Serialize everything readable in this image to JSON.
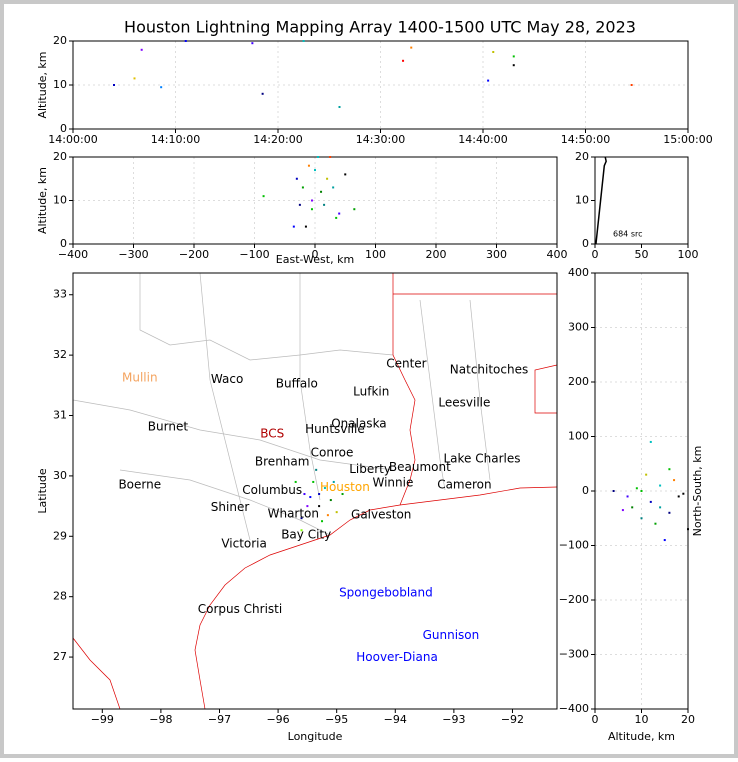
{
  "title": "Houston Lightning Mapping Array 1400-1500 UTC May 28, 2023",
  "chart_data": [
    {
      "type": "scatter",
      "ylabel": "Altitude, km",
      "xlim": [
        0,
        60
      ],
      "xticks": [
        {
          "value": 0,
          "label": "14:00:00"
        },
        {
          "value": 10,
          "label": "14:10:00"
        },
        {
          "value": 20,
          "label": "14:20:00"
        },
        {
          "value": 30,
          "label": "14:30:00"
        },
        {
          "value": 40,
          "label": "14:40:00"
        },
        {
          "value": 50,
          "label": "14:50:00"
        },
        {
          "value": 60,
          "label": "15:00:00"
        }
      ],
      "ylim": [
        0,
        20
      ],
      "yticks": [
        0,
        10,
        20
      ],
      "grid": true,
      "x": [
        6.7,
        6.0,
        4.0,
        8.6,
        17.5,
        18.5,
        32.2,
        33.0,
        26.0,
        40.5,
        43.0,
        43.0,
        41.0,
        54.5,
        11.0,
        22.5
      ],
      "values": [
        18,
        11.5,
        10,
        9.5,
        19.5,
        8,
        15.5,
        18.5,
        5,
        11,
        16.5,
        14.5,
        17.5,
        10,
        20,
        20
      ],
      "colors": [
        "#8000ff",
        "#e0c000",
        "#0000c0",
        "#0080ff",
        "#4000ff",
        "#000080",
        "#ff0000",
        "#ff8000",
        "#00a0a0",
        "#0000ff",
        "#00c000",
        "#000000",
        "#c0c000",
        "#ff4000",
        "#0000ff",
        "#00c0c0"
      ]
    },
    {
      "type": "scatter",
      "xlabel": "East-West, km",
      "ylabel": "Altitude, km",
      "xlim": [
        -400,
        400
      ],
      "xticks": [
        {
          "value": -400,
          "label": "−400"
        },
        {
          "value": -300,
          "label": "−300"
        },
        {
          "value": -200,
          "label": "−200"
        },
        {
          "value": -100,
          "label": "−100"
        },
        0,
        100,
        200,
        300,
        400
      ],
      "ylim": [
        0,
        20
      ],
      "yticks": [
        0,
        10,
        20
      ],
      "grid": true,
      "x": [
        -30,
        -20,
        -10,
        0,
        10,
        20,
        -25,
        -5,
        15,
        30,
        40,
        -15,
        -35,
        5,
        25,
        -85,
        65,
        50,
        -5,
        35
      ],
      "values": [
        15,
        13,
        18,
        17,
        12,
        15,
        9,
        8,
        9,
        13,
        7,
        4,
        4,
        20,
        20,
        11,
        8,
        16,
        10,
        6
      ],
      "colors": [
        "#0000c0",
        "#00a000",
        "#ff8000",
        "#00c0c0",
        "#008000",
        "#c0c000",
        "#000080",
        "#00c000",
        "#008080",
        "#00a0a0",
        "#4000ff",
        "#000000",
        "#0000ff",
        "#00c0c0",
        "#ff4000",
        "#00c000",
        "#00a000",
        "#000000",
        "#8000ff",
        "#00c000"
      ]
    },
    {
      "type": "line",
      "annotation": "684 src",
      "xlim": [
        0,
        100
      ],
      "xticks": [
        0,
        50,
        100
      ],
      "ylim": [
        0,
        20
      ],
      "yticks": [
        0,
        10,
        20
      ],
      "color": "#000000",
      "x": [
        1,
        2,
        3,
        4,
        5,
        6,
        7,
        8,
        9,
        10,
        12,
        11
      ],
      "values": [
        0,
        2,
        4,
        6,
        8,
        10,
        12,
        14,
        16,
        18,
        19,
        20
      ]
    },
    {
      "type": "map",
      "xlabel": "Longitude",
      "ylabel": "Latitude",
      "xlim": [
        -99.5,
        -91.24
      ],
      "xticks": [
        {
          "value": -99,
          "label": "−99"
        },
        {
          "value": -98,
          "label": "−98"
        },
        {
          "value": -97,
          "label": "−97"
        },
        {
          "value": -96,
          "label": "−96"
        },
        {
          "value": -95,
          "label": "−95"
        },
        {
          "value": -94,
          "label": "−94"
        },
        {
          "value": -93,
          "label": "−93"
        },
        {
          "value": -92,
          "label": "−92"
        }
      ],
      "ylim": [
        26.14,
        33.36
      ],
      "yticks": [
        27,
        28,
        29,
        30,
        31,
        32,
        33
      ],
      "labels": [
        {
          "text": "Mullin",
          "lon": -98.36,
          "lat": 31.62,
          "color": "#f4a460"
        },
        {
          "text": "Waco",
          "lon": -96.87,
          "lat": 31.6,
          "color": "#000000"
        },
        {
          "text": "Buffalo",
          "lon": -95.68,
          "lat": 31.52,
          "color": "#000000"
        },
        {
          "text": "Center",
          "lon": -93.81,
          "lat": 31.85,
          "color": "#000000"
        },
        {
          "text": "Natchitoches",
          "lon": -92.4,
          "lat": 31.75,
          "color": "#000000"
        },
        {
          "text": "Lufkin",
          "lon": -94.41,
          "lat": 31.39,
          "color": "#000000"
        },
        {
          "text": "Leesville",
          "lon": -92.82,
          "lat": 31.21,
          "color": "#000000"
        },
        {
          "text": "Burnet",
          "lon": -97.88,
          "lat": 30.81,
          "color": "#000000"
        },
        {
          "text": "BCS",
          "lon": -96.1,
          "lat": 30.69,
          "color": "#b00000"
        },
        {
          "text": "Huntsville",
          "lon": -95.03,
          "lat": 30.77,
          "color": "#000000"
        },
        {
          "text": "Onalaska",
          "lon": -94.62,
          "lat": 30.86,
          "color": "#000000"
        },
        {
          "text": "Conroe",
          "lon": -95.08,
          "lat": 30.38,
          "color": "#000000"
        },
        {
          "text": "Brenham",
          "lon": -95.93,
          "lat": 30.23,
          "color": "#000000"
        },
        {
          "text": "Liberty",
          "lon": -94.43,
          "lat": 30.11,
          "color": "#000000"
        },
        {
          "text": "Beaumont",
          "lon": -93.58,
          "lat": 30.14,
          "color": "#000000"
        },
        {
          "text": "Lake Charles",
          "lon": -92.52,
          "lat": 30.28,
          "color": "#000000"
        },
        {
          "text": "Boerne",
          "lon": -98.36,
          "lat": 29.85,
          "color": "#000000"
        },
        {
          "text": "Columbus",
          "lon": -96.1,
          "lat": 29.76,
          "color": "#000000"
        },
        {
          "text": "Houston",
          "lon": -94.86,
          "lat": 29.81,
          "color": "#ffa500"
        },
        {
          "text": "Winnie",
          "lon": -94.04,
          "lat": 29.88,
          "color": "#000000"
        },
        {
          "text": "Cameron",
          "lon": -92.82,
          "lat": 29.85,
          "color": "#000000"
        },
        {
          "text": "Shiner",
          "lon": -96.82,
          "lat": 29.48,
          "color": "#000000"
        },
        {
          "text": "Galveston",
          "lon": -94.24,
          "lat": 29.35,
          "color": "#000000"
        },
        {
          "text": "Wharton",
          "lon": -95.74,
          "lat": 29.37,
          "color": "#000000"
        },
        {
          "text": "Bay City",
          "lon": -95.52,
          "lat": 29.02,
          "color": "#000000"
        },
        {
          "text": "Victoria",
          "lon": -96.58,
          "lat": 28.87,
          "color": "#000000"
        },
        {
          "text": "Corpus Christi",
          "lon": -96.65,
          "lat": 27.79,
          "color": "#000000"
        },
        {
          "text": "Spongebobland",
          "lon": -94.16,
          "lat": 28.06,
          "color": "#0000ff"
        },
        {
          "text": "Gunnison",
          "lon": -93.05,
          "lat": 27.36,
          "color": "#0000ff"
        },
        {
          "text": "Hoover-Diana",
          "lon": -93.97,
          "lat": 26.99,
          "color": "#0000ff"
        }
      ],
      "x": [
        -95.4,
        -95.3,
        -95.1,
        -95.5,
        -95.2,
        -95.0,
        -95.6,
        -95.3,
        -94.9,
        -95.45,
        -95.7,
        -95.15,
        -95.6,
        -95.05,
        -95.35,
        -95.55,
        -95.25
      ],
      "values": [
        29.9,
        29.7,
        29.6,
        29.5,
        29.8,
        29.4,
        29.3,
        29.5,
        29.7,
        29.65,
        29.9,
        29.35,
        29.1,
        29.9,
        30.1,
        29.7,
        29.25
      ],
      "colors": [
        "#00c000",
        "#0000c0",
        "#008000",
        "#8000ff",
        "#00c0c0",
        "#c0c000",
        "#000080",
        "#000000",
        "#00a000",
        "#0000ff",
        "#00c000",
        "#ff8000",
        "#80ff00",
        "#00a0a0",
        "#008080",
        "#4000ff",
        "#00c000"
      ]
    },
    {
      "type": "scatter",
      "xlabel": "Altitude, km",
      "ylabel": "North-South, km",
      "xlim": [
        0,
        20
      ],
      "xticks": [
        0,
        10,
        20
      ],
      "ylim": [
        -400,
        400
      ],
      "yticks": [
        {
          "value": -400,
          "label": "−400"
        },
        {
          "value": -300,
          "label": "−300"
        },
        {
          "value": -200,
          "label": "−200"
        },
        {
          "value": -100,
          "label": "−100"
        },
        0,
        100,
        200,
        300,
        400
      ],
      "grid": true,
      "x": [
        10,
        12,
        8,
        14,
        16,
        11,
        18,
        6,
        13,
        15,
        9,
        17,
        19,
        4,
        12,
        10,
        7,
        14,
        16,
        20
      ],
      "values": [
        0,
        -20,
        -30,
        10,
        -40,
        30,
        -10,
        -35,
        -60,
        -90,
        5,
        20,
        -5,
        0,
        90,
        -50,
        -10,
        -30,
        40,
        -70
      ],
      "colors": [
        "#00c000",
        "#0000c0",
        "#008000",
        "#00c0c0",
        "#000080",
        "#c0c000",
        "#000000",
        "#8000ff",
        "#00a000",
        "#0000ff",
        "#00c000",
        "#ff8000",
        "#000000",
        "#000080",
        "#00c0c0",
        "#008080",
        "#4000ff",
        "#00a0a0",
        "#00c000",
        "#000000"
      ]
    }
  ]
}
